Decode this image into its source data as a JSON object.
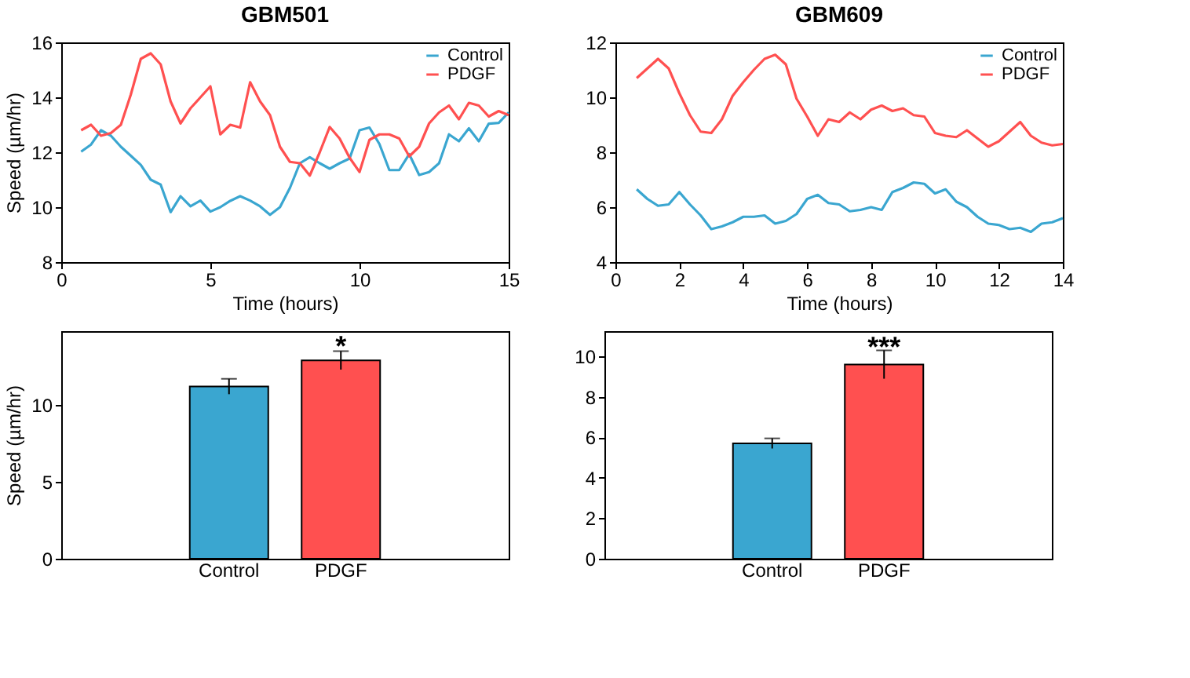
{
  "chart_data": [
    {
      "type": "line",
      "title": "GBM501",
      "xlabel": "Time (hours)",
      "ylabel": "Speed (µm/hr)",
      "xlim": [
        0,
        15
      ],
      "xticks": [
        0,
        5,
        10,
        15
      ],
      "ylim": [
        8,
        16
      ],
      "yticks": [
        8,
        10,
        12,
        14,
        16
      ],
      "grid": false,
      "legend": "top right",
      "x": [
        0.667,
        1.0,
        1.333,
        1.667,
        2.0,
        2.333,
        2.667,
        3.0,
        3.333,
        3.667,
        4.0,
        4.333,
        4.667,
        5.0,
        5.333,
        5.667,
        6.0,
        6.333,
        6.667,
        7.0,
        7.333,
        7.667,
        8.0,
        8.333,
        8.667,
        9.0,
        9.333,
        9.667,
        10.0,
        10.333,
        10.667,
        11.0,
        11.333,
        11.667,
        12.0,
        12.333,
        12.667,
        13.0,
        13.333,
        13.667,
        14.0,
        14.333,
        14.667,
        15.0
      ],
      "series": [
        {
          "name": "Control",
          "color": "#3aa6d0",
          "values": [
            12.02,
            12.28,
            12.8,
            12.6,
            12.2,
            11.87,
            11.54,
            11.0,
            10.82,
            9.82,
            10.4,
            10.03,
            10.24,
            9.84,
            10.0,
            10.23,
            10.4,
            10.24,
            10.03,
            9.72,
            10.0,
            10.7,
            11.6,
            11.82,
            11.6,
            11.4,
            11.6,
            11.77,
            12.8,
            12.9,
            12.3,
            11.35,
            11.35,
            11.93,
            11.17,
            11.28,
            11.6,
            12.65,
            12.4,
            12.87,
            12.4,
            13.04,
            13.07,
            13.45
          ]
        },
        {
          "name": "PDGF",
          "color": "#ff5050",
          "values": [
            12.8,
            13.0,
            12.6,
            12.7,
            13.0,
            14.1,
            15.4,
            15.6,
            15.2,
            13.85,
            13.05,
            13.6,
            14.0,
            14.4,
            12.65,
            13.0,
            12.9,
            14.55,
            13.85,
            13.35,
            12.2,
            11.65,
            11.6,
            11.15,
            12.0,
            12.92,
            12.5,
            11.8,
            11.28,
            12.45,
            12.65,
            12.65,
            12.5,
            11.85,
            12.2,
            13.05,
            13.45,
            13.7,
            13.2,
            13.8,
            13.7,
            13.3,
            13.5,
            13.35
          ]
        }
      ]
    },
    {
      "type": "line",
      "title": "GBM609",
      "xlabel": "Time (hours)",
      "xlim": [
        0,
        14
      ],
      "xticks": [
        0,
        2,
        4,
        6,
        8,
        10,
        12,
        14
      ],
      "ylim": [
        4,
        12
      ],
      "yticks": [
        4,
        6,
        8,
        10,
        12
      ],
      "grid": false,
      "legend": "top right",
      "x": [
        0.667,
        1.0,
        1.333,
        1.667,
        2.0,
        2.333,
        2.667,
        3.0,
        3.333,
        3.667,
        4.0,
        4.333,
        4.667,
        5.0,
        5.333,
        5.667,
        6.0,
        6.333,
        6.667,
        7.0,
        7.333,
        7.667,
        8.0,
        8.333,
        8.667,
        9.0,
        9.333,
        9.667,
        10.0,
        10.333,
        10.667,
        11.0,
        11.333,
        11.667,
        12.0,
        12.333,
        12.667,
        13.0,
        13.333,
        13.667,
        14.0
      ],
      "series": [
        {
          "name": "Control",
          "color": "#3aa6d0",
          "values": [
            6.65,
            6.3,
            6.05,
            6.1,
            6.55,
            6.1,
            5.7,
            5.2,
            5.3,
            5.45,
            5.65,
            5.65,
            5.7,
            5.4,
            5.5,
            5.75,
            6.3,
            6.45,
            6.15,
            6.1,
            5.85,
            5.9,
            6.0,
            5.9,
            6.55,
            6.7,
            6.9,
            6.85,
            6.5,
            6.65,
            6.2,
            6.0,
            5.65,
            5.4,
            5.35,
            5.2,
            5.25,
            5.1,
            5.4,
            5.45,
            5.6
          ]
        },
        {
          "name": "PDGF",
          "color": "#ff5050",
          "values": [
            10.7,
            11.05,
            11.4,
            11.05,
            10.15,
            9.35,
            8.75,
            8.7,
            9.2,
            10.05,
            10.55,
            11.0,
            11.4,
            11.55,
            11.2,
            9.95,
            9.3,
            8.6,
            9.2,
            9.1,
            9.45,
            9.2,
            9.55,
            9.7,
            9.5,
            9.6,
            9.35,
            9.3,
            8.7,
            8.6,
            8.55,
            8.8,
            8.5,
            8.2,
            8.4,
            8.75,
            9.1,
            8.6,
            8.35,
            8.25,
            8.3
          ]
        }
      ]
    },
    {
      "type": "bar",
      "ylabel": "Speed (µm/hr)",
      "categories": [
        "Control",
        "PDGF"
      ],
      "values": [
        11.2,
        12.9
      ],
      "errors": [
        0.5,
        0.6
      ],
      "colors": [
        "#3aa6d0",
        "#ff5050"
      ],
      "ylim": [
        0,
        14.8
      ],
      "yticks": [
        0,
        5,
        10
      ],
      "grid": false,
      "annotations": [
        {
          "text": "*",
          "x": "PDGF",
          "y": 13.5
        }
      ]
    },
    {
      "type": "bar",
      "categories": [
        "Control",
        "PDGF"
      ],
      "values": [
        5.7,
        9.6
      ],
      "errors": [
        0.25,
        0.7
      ],
      "colors": [
        "#3aa6d0",
        "#ff5050"
      ],
      "ylim": [
        0,
        11.25
      ],
      "yticks": [
        0,
        2,
        4,
        6,
        8,
        10
      ],
      "grid": false,
      "annotations": [
        {
          "text": "***",
          "x": "PDGF",
          "y": 10.25
        }
      ]
    }
  ]
}
